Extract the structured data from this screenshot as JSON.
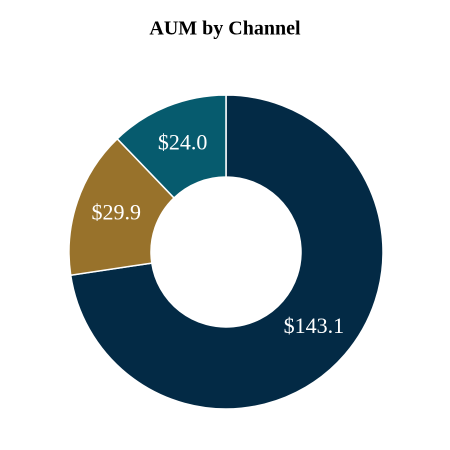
{
  "chart_data": {
    "type": "donut",
    "title": "AUM by Channel",
    "values": [
      143.1,
      29.9,
      24.0
    ],
    "value_labels": [
      "$143.1",
      "$29.9",
      "$24.0"
    ],
    "colors": [
      "#032a45",
      "#98722b",
      "#065b6e"
    ]
  }
}
